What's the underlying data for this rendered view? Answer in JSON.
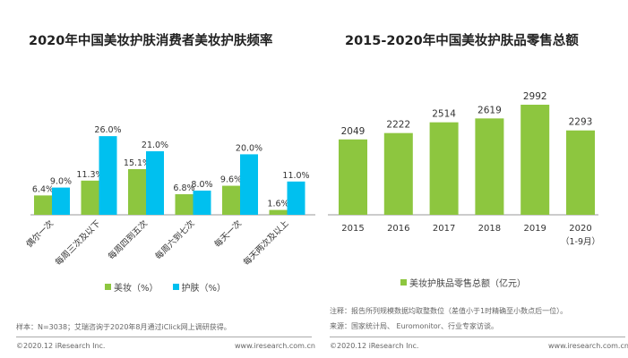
{
  "colors": {
    "green": "#8dc63f",
    "blue": "#00c0ef"
  },
  "chart_data": [
    {
      "type": "bar",
      "title": "2020年中国美妆护肤消费者美妆护肤频率",
      "categories": [
        "偶尔一次",
        "每周三次及以下",
        "每周四到五次",
        "每周六到七次",
        "每天一次",
        "每天两次及以上"
      ],
      "series": [
        {
          "name": "美妆（%）",
          "values": [
            6.4,
            11.3,
            15.1,
            6.8,
            9.6,
            1.6
          ],
          "color": "#8dc63f"
        },
        {
          "name": "护肤（%）",
          "values": [
            9.0,
            26.0,
            21.0,
            8.0,
            20.0,
            11.0
          ],
          "color": "#00c0ef"
        }
      ],
      "unit": "%",
      "legend": "bottom",
      "grid": false
    },
    {
      "type": "bar",
      "title": "2015-2020年中国美妆护肤品零售总额",
      "categories": [
        "2015",
        "2016",
        "2017",
        "2018",
        "2019",
        "2020"
      ],
      "category_notes": [
        "",
        "",
        "",
        "",
        "",
        "（1-9月）"
      ],
      "series": [
        {
          "name": "美妆护肤品零售总额（亿元）",
          "values": [
            2049,
            2222,
            2514,
            2619,
            2992,
            2293
          ],
          "color": "#8dc63f"
        }
      ],
      "legend": "bottom",
      "grid": false
    }
  ],
  "notes": {
    "left_sample": "样本：N=3038；艾瑞咨询于2020年8月通过iClick网上调研获得。",
    "right_note": "注释：报告所列规模数据均取整数位（差值小于1时精确至小数点后一位）。",
    "right_source": "来源：国家统计局、 Euromonitor、行业专家访谈。",
    "copyright": "©2020.12 iResearch Inc.",
    "website": "www.iresearch.com.cn"
  }
}
